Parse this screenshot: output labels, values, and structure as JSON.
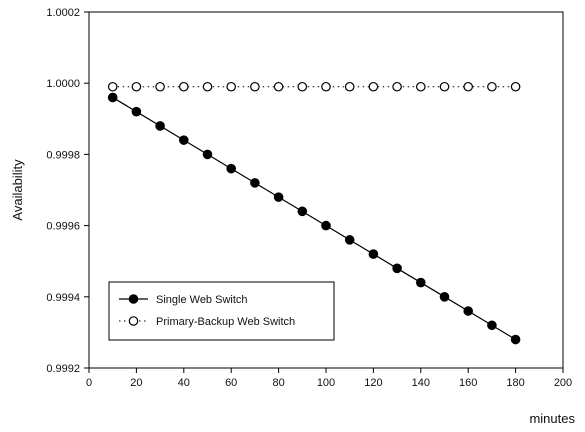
{
  "chart_data": {
    "type": "line",
    "title": "",
    "xlabel": "minutes",
    "ylabel": "Availability",
    "xlim": [
      0,
      200
    ],
    "ylim": [
      0.9992,
      1.0002
    ],
    "x_ticks": [
      "0",
      "20",
      "40",
      "60",
      "80",
      "100",
      "120",
      "140",
      "160",
      "180",
      "200"
    ],
    "y_ticks": [
      "0.9992",
      "0.9994",
      "0.9996",
      "0.9998",
      "1.0000",
      "1.0002"
    ],
    "grid": false,
    "legend_position": "bottom-left",
    "x": [
      10,
      20,
      30,
      40,
      50,
      60,
      70,
      80,
      90,
      100,
      110,
      120,
      130,
      140,
      150,
      160,
      170,
      180
    ],
    "series": [
      {
        "name": "Single Web Switch",
        "marker": "filled-circle",
        "line": "solid",
        "color": "#000000",
        "values": [
          0.99996,
          0.99992,
          0.99988,
          0.99984,
          0.9998,
          0.99976,
          0.99972,
          0.99968,
          0.99964,
          0.9996,
          0.99956,
          0.99952,
          0.99948,
          0.99944,
          0.9994,
          0.99936,
          0.99932,
          0.99928
        ]
      },
      {
        "name": "Primary-Backup Web Switch",
        "marker": "open-circle",
        "line": "dotted",
        "color": "#000000",
        "values": [
          0.99999,
          0.99999,
          0.99999,
          0.99999,
          0.99999,
          0.99999,
          0.99999,
          0.99999,
          0.99999,
          0.99999,
          0.99999,
          0.99999,
          0.99999,
          0.99999,
          0.99999,
          0.99999,
          0.99999,
          0.99999
        ]
      }
    ]
  }
}
